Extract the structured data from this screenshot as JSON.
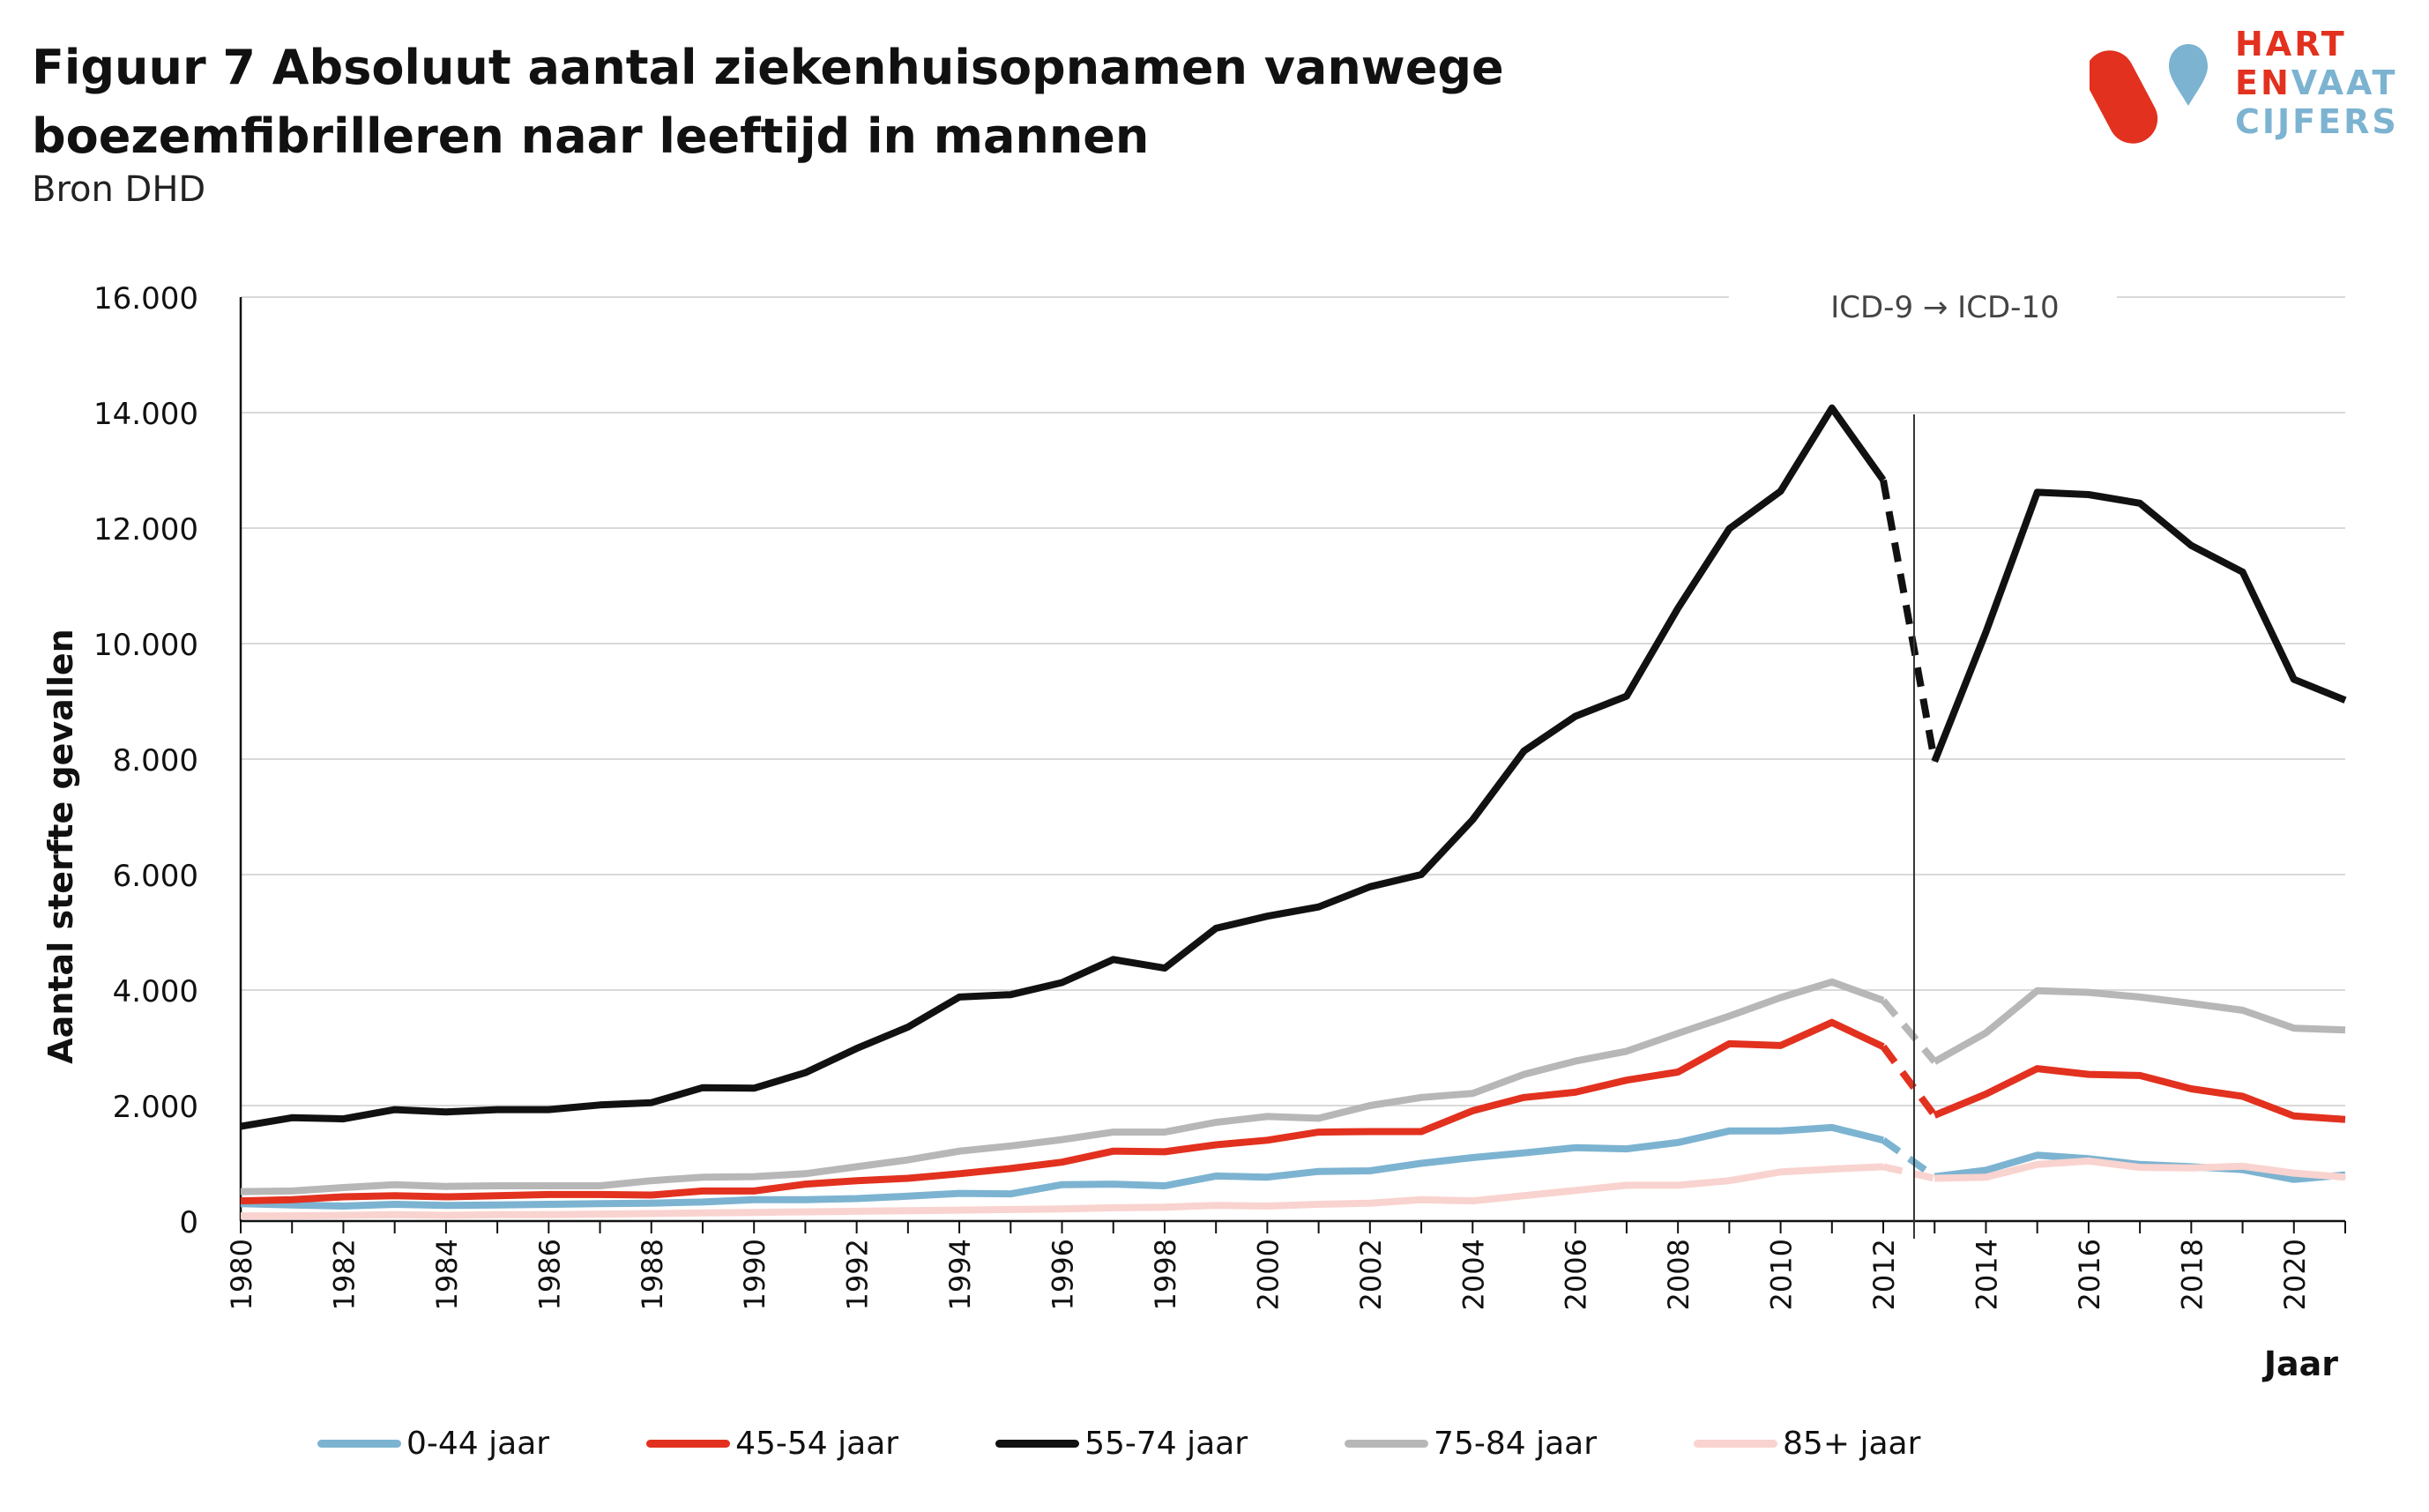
{
  "header": {
    "title": "Figuur 7 Absoluut aantal ziekenhuisopnamen vanwege boezemfibrilleren naar leeftijd in mannen",
    "subtitle": "Bron DHD"
  },
  "logo": {
    "line1": "HART",
    "line2_a": "EN",
    "line2_b": "VAAT",
    "line3": "CIJFERS",
    "red": "#e2311f",
    "blue": "#7cb3d1"
  },
  "chart_data": {
    "type": "line",
    "ylabel": "Aantal sterfte gevallen",
    "xlabel": "Jaar",
    "ylim": [
      0,
      16000
    ],
    "xlim": [
      1980,
      2021
    ],
    "yticks": [
      0,
      2000,
      4000,
      6000,
      8000,
      10000,
      12000,
      14000,
      16000
    ],
    "ytick_labels": [
      "0",
      "2.000",
      "4.000",
      "6.000",
      "8.000",
      "10.000",
      "12.000",
      "14.000",
      "16.000"
    ],
    "xticks": [
      1980,
      1982,
      1984,
      1986,
      1988,
      1990,
      1992,
      1994,
      1996,
      1998,
      2000,
      2002,
      2004,
      2006,
      2008,
      2010,
      2012,
      2014,
      2016,
      2018,
      2020
    ],
    "grid": "horizontal",
    "legend_position": "bottom",
    "annotation": {
      "text": "ICD-9 → ICD-10",
      "x": 2012.6
    },
    "dashed_between": [
      2012,
      2013
    ],
    "x": [
      1980,
      1981,
      1982,
      1983,
      1984,
      1985,
      1986,
      1987,
      1988,
      1989,
      1990,
      1991,
      1992,
      1993,
      1994,
      1995,
      1996,
      1997,
      1998,
      1999,
      2000,
      2001,
      2002,
      2003,
      2004,
      2005,
      2006,
      2007,
      2008,
      2009,
      2010,
      2011,
      2012,
      2013,
      2014,
      2015,
      2016,
      2017,
      2018,
      2019,
      2020,
      2021
    ],
    "series": [
      {
        "name": "0-44 jaar",
        "color": "#7cb3d1",
        "values": [
          300,
          280,
          260,
          290,
          270,
          280,
          290,
          300,
          310,
          330,
          370,
          370,
          390,
          430,
          480,
          470,
          630,
          640,
          610,
          780,
          760,
          860,
          870,
          1000,
          1100,
          1180,
          1270,
          1250,
          1360,
          1560,
          1560,
          1620,
          1400,
          770,
          880,
          1140,
          1080,
          980,
          940,
          890,
          720,
          800
        ]
      },
      {
        "name": "45-54 jaar",
        "color": "#e2311f",
        "values": [
          350,
          370,
          420,
          440,
          420,
          440,
          460,
          460,
          450,
          520,
          520,
          640,
          700,
          740,
          820,
          910,
          1020,
          1210,
          1200,
          1320,
          1400,
          1540,
          1550,
          1550,
          1910,
          2140,
          2230,
          2440,
          2580,
          3070,
          3040,
          3440,
          3020,
          1830,
          2200,
          2640,
          2540,
          2520,
          2290,
          2160,
          1820,
          1760
        ]
      },
      {
        "name": "55-74 jaar",
        "color": "#111111",
        "values": [
          1640,
          1790,
          1770,
          1930,
          1890,
          1930,
          1930,
          2010,
          2050,
          2310,
          2300,
          2570,
          2990,
          3360,
          3880,
          3920,
          4130,
          4530,
          4380,
          5070,
          5280,
          5440,
          5790,
          6000,
          6950,
          8140,
          8740,
          9090,
          10610,
          11990,
          12640,
          14080,
          12830,
          7960,
          10200,
          12620,
          12580,
          12430,
          11700,
          11240,
          9380,
          9020
        ]
      },
      {
        "name": "75-84 jaar",
        "color": "#b7b7b7",
        "values": [
          510,
          520,
          580,
          630,
          600,
          610,
          610,
          610,
          700,
          760,
          770,
          820,
          940,
          1060,
          1210,
          1300,
          1410,
          1540,
          1540,
          1710,
          1810,
          1780,
          2000,
          2140,
          2210,
          2540,
          2770,
          2940,
          3250,
          3550,
          3870,
          4140,
          3820,
          2760,
          3260,
          3990,
          3960,
          3880,
          3770,
          3650,
          3340,
          3310
        ]
      },
      {
        "name": "85+ jaar",
        "color": "#f9d3cf",
        "values": [
          90,
          90,
          100,
          110,
          100,
          110,
          110,
          120,
          130,
          140,
          150,
          160,
          170,
          180,
          190,
          200,
          210,
          230,
          240,
          270,
          260,
          290,
          310,
          370,
          350,
          440,
          530,
          620,
          620,
          700,
          850,
          900,
          940,
          740,
          760,
          980,
          1040,
          930,
          920,
          950,
          830,
          760
        ]
      }
    ]
  }
}
